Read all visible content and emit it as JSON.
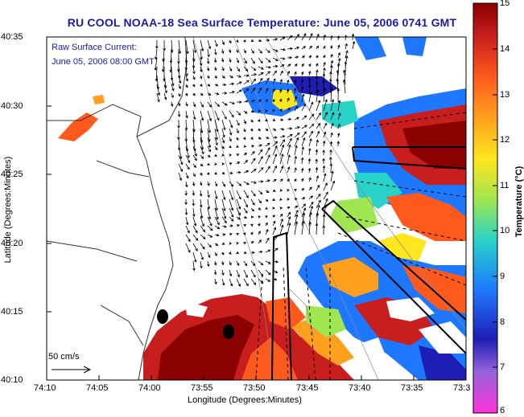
{
  "title": "RU COOL  NOAA-18  Sea Surface Temperature:  June 05, 2006 0741 GMT",
  "annotation": {
    "line1": "Raw Surface Current:",
    "line2": "June 05, 2006 08:00 GMT",
    "scale_label": "50 cm/s"
  },
  "axes": {
    "xlabel": "Longitude (Degrees:Minutes)",
    "ylabel": "Latitude (Degrees:Minutes)",
    "xticks": [
      "74:10",
      "74:05",
      "74:00",
      "73:55",
      "73:50",
      "73:45",
      "73:40",
      "73:35",
      "73:3"
    ],
    "yticks": [
      "40:35",
      "40:30",
      "40:25",
      "40:20",
      "40:15",
      "40:10"
    ]
  },
  "colorbar": {
    "label": "Temperature (°C)",
    "ticks": [
      "15",
      "14",
      "13",
      "12",
      "11",
      "10",
      "9",
      "8",
      "7",
      "6"
    ],
    "colors": [
      "#8b0000",
      "#c81e1e",
      "#ff5a1e",
      "#ffa01e",
      "#ffe61e",
      "#a0e650",
      "#28d2c8",
      "#1e78ff",
      "#1e1eb4",
      "#9664dc",
      "#ff32dc"
    ]
  },
  "colors": {
    "title": "#1a1aa8",
    "annotation": "#1a1aa8"
  }
}
